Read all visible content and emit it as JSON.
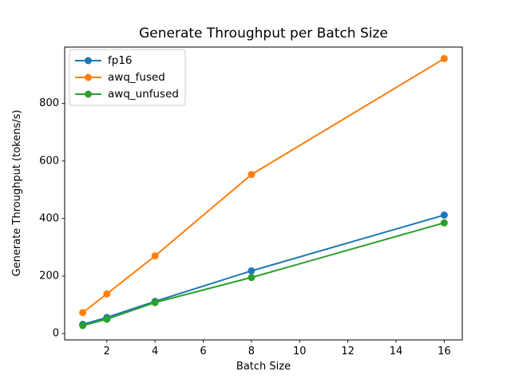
{
  "chart_data": {
    "type": "line",
    "title": "Generate Throughput per Batch Size",
    "xlabel": "Batch Size",
    "ylabel": "Generate Throughput (tokens/s)",
    "x": [
      1,
      2,
      4,
      8,
      16
    ],
    "series": [
      {
        "name": "fp16",
        "color": "#1f77b4",
        "values": [
          32,
          56,
          112,
          218,
          412
        ]
      },
      {
        "name": "awq_fused",
        "color": "#ff7f0e",
        "values": [
          73,
          138,
          270,
          553,
          956
        ]
      },
      {
        "name": "awq_unfused",
        "color": "#2ca02c",
        "values": [
          28,
          50,
          108,
          195,
          385
        ]
      }
    ],
    "xticks": [
      2,
      4,
      6,
      8,
      10,
      12,
      14,
      16
    ],
    "yticks": [
      0,
      200,
      400,
      600,
      800
    ],
    "xlim": [
      0.25,
      16.75
    ],
    "ylim": [
      -22,
      996
    ],
    "grid": false,
    "legend_position": "upper left",
    "legend_entries": [
      "fp16",
      "awq_fused",
      "awq_unfused"
    ],
    "marker": "circle",
    "line_width": 2,
    "marker_radius": 4.5,
    "frame_color": "#000000",
    "background": "#ffffff"
  }
}
